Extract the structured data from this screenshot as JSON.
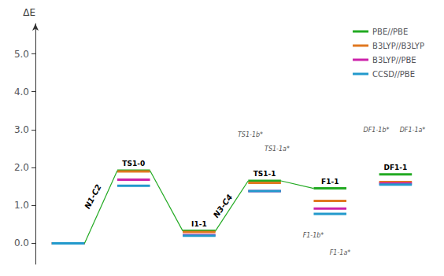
{
  "chart_data": {
    "type": "levels",
    "ylabel": "ΔE",
    "categories": [
      null,
      "TS1-0",
      "I1-1",
      "TS1-1",
      "F1-1",
      "DF1-1"
    ],
    "series": [
      {
        "name": "PBE//PBE",
        "color": "#22aa22",
        "values": [
          0.0,
          1.92,
          0.33,
          1.65,
          1.45,
          1.82
        ]
      },
      {
        "name": "B3LYP//B3LYP",
        "color": "#e07820",
        "values": [
          0.0,
          1.9,
          0.3,
          1.6,
          1.12,
          1.62
        ]
      },
      {
        "name": "B3LYP//PBE",
        "color": "#cc22aa",
        "values": [
          0.0,
          1.68,
          0.22,
          1.38,
          0.92,
          1.58
        ]
      },
      {
        "name": "CCSD//PBE",
        "color": "#2299cc",
        "values": [
          0.0,
          1.52,
          0.2,
          1.38,
          0.78,
          1.55
        ]
      }
    ],
    "connections": [
      {
        "from": 0,
        "to": 1
      },
      {
        "from": 1,
        "to": 2
      },
      {
        "from": 2,
        "to": 3
      },
      {
        "from": 3,
        "to": 4
      }
    ],
    "annotations": [
      "N1-C2",
      "N3-C4",
      "TS1-1b*",
      "TS1-1a*",
      "F1-1b*",
      "F1-1a*",
      "DF1-1b*",
      "DF1-1a*"
    ],
    "ylim": [
      -0.55,
      5.8
    ],
    "yticks": [
      {
        "value": 0,
        "label": "0.0"
      },
      {
        "value": 1,
        "label": "1.0"
      },
      {
        "value": 2,
        "label": "2.0"
      },
      {
        "value": 3,
        "label": "3.0"
      },
      {
        "value": 4,
        "label": "4.0"
      },
      {
        "value": 5,
        "label": "5.0"
      }
    ],
    "grid": false,
    "legend": "upper right",
    "tick_labels": "y"
  }
}
